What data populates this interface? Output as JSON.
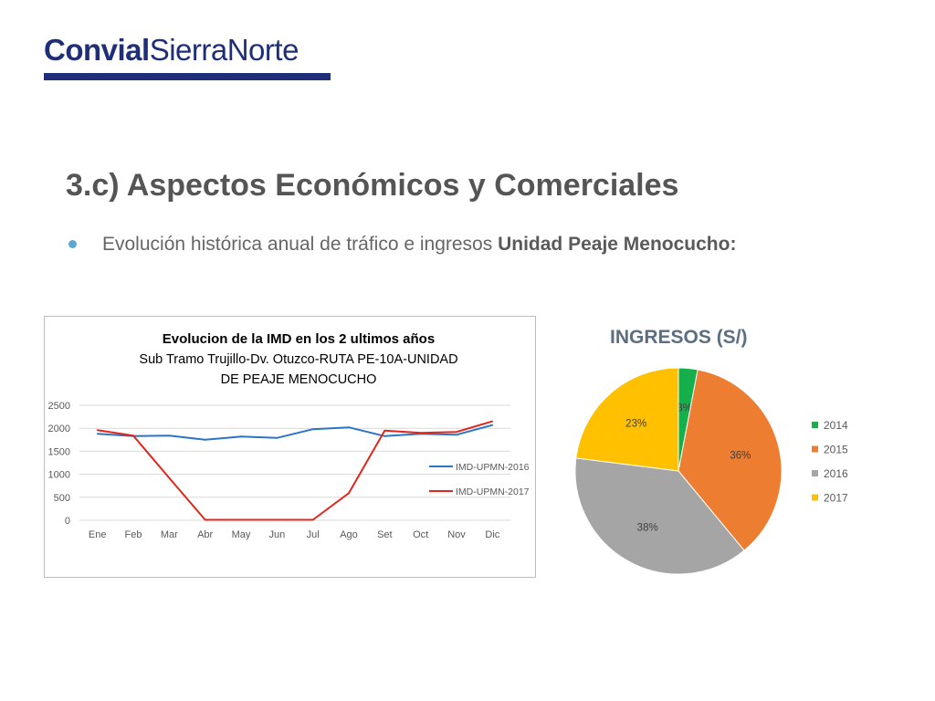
{
  "header": {
    "logo_bold": "Convial",
    "logo_light": "SierraNorte",
    "title": "3.c) Aspectos Económicos y Comerciales",
    "bullet_text": "Evolución histórica anual de tráfico e ingresos ",
    "bullet_bold": "Unidad Peaje Menocucho:"
  },
  "chart_data": [
    {
      "type": "line",
      "title_lines": [
        "Evolucion de la IMD  en los 2 ultimos años",
        "Sub Tramo Trujillo-Dv. Otuzco-RUTA PE-10A-UNIDAD",
        "DE PEAJE MENOCUCHO"
      ],
      "categories": [
        "Ene",
        "Feb",
        "Mar",
        "Abr",
        "May",
        "Jun",
        "Jul",
        "Ago",
        "Set",
        "Oct",
        "Nov",
        "Dic"
      ],
      "yticks": [
        "0",
        "500",
        "1000",
        "1500",
        "2000",
        "2500"
      ],
      "ylim": [
        0,
        2500
      ],
      "grid": true,
      "legend_position": "right",
      "series": [
        {
          "name": "IMD-UPMN-2016",
          "color": "#2b74c6",
          "values": [
            1880,
            1830,
            1840,
            1750,
            1820,
            1790,
            1980,
            2020,
            1830,
            1880,
            1860,
            2070
          ]
        },
        {
          "name": "IMD-UPMN-2017",
          "color": "#e1261c",
          "values": [
            1960,
            1840,
            920,
            10,
            10,
            10,
            10,
            590,
            1950,
            1900,
            1920,
            2150
          ]
        }
      ]
    },
    {
      "type": "pie",
      "title": "INGRESOS (S/)",
      "legend_position": "right",
      "slices": [
        {
          "label": "2014",
          "value": 3,
          "value_label": "3%",
          "color": "#15b04b"
        },
        {
          "label": "2015",
          "value": 36,
          "value_label": "36%",
          "color": "#ed7d31"
        },
        {
          "label": "2016",
          "value": 38,
          "value_label": "38%",
          "color": "#a5a5a5"
        },
        {
          "label": "2017",
          "value": 23,
          "value_label": "23%",
          "color": "#ffc000"
        }
      ]
    }
  ]
}
